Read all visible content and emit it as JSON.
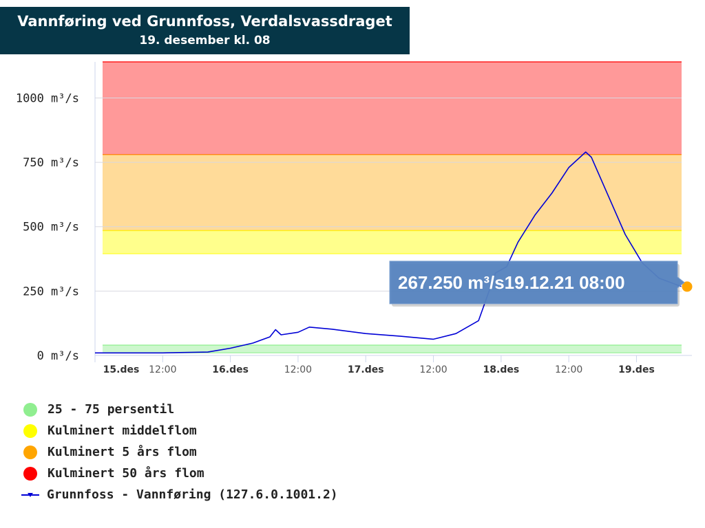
{
  "header": {
    "title": "Vannføring ved Grunnfoss, Verdalsvassdraget",
    "subtitle": "19. desember kl. 08"
  },
  "chart_data": {
    "type": "line",
    "y_unit": "m³/s",
    "ylim": [
      0,
      1140
    ],
    "y_ticks": [
      0,
      250,
      500,
      750,
      1000
    ],
    "y_tick_labels": [
      "0 m³/s",
      "250 m³/s",
      "500 m³/s",
      "750 m³/s",
      "1000 m³/s"
    ],
    "xlim": [
      "2021-12-15T00:00",
      "2021-12-19T08:00"
    ],
    "x_ticks": [
      "2021-12-15T00:00",
      "2021-12-15T12:00",
      "2021-12-16T00:00",
      "2021-12-16T12:00",
      "2021-12-17T00:00",
      "2021-12-17T12:00",
      "2021-12-18T00:00",
      "2021-12-18T12:00",
      "2021-12-19T00:00"
    ],
    "x_tick_labels": [
      "15.des",
      "12:00",
      "16.des",
      "12:00",
      "17.des",
      "12:00",
      "18.des",
      "12:00",
      "19.des"
    ],
    "grid": true,
    "bands": [
      {
        "name": "25 - 75 persentil",
        "from": 10,
        "to": 40,
        "color": "#90ee90"
      },
      {
        "name": "Kulminert middelflom",
        "from": 395,
        "to": 485,
        "color": "#ffff00"
      },
      {
        "name": "Kulminert 5 års flom",
        "from": 485,
        "to": 780,
        "color": "#ffa500"
      },
      {
        "name": "Kulminert 50 års flom",
        "from": 780,
        "to": 1140,
        "color": "#ff0000"
      }
    ],
    "series": [
      {
        "name": "Grunnfoss - Vannføring (127.6.0.1001.2)",
        "color": "#0000d6",
        "points": [
          [
            "2021-12-15T00:00",
            10
          ],
          [
            "2021-12-15T12:00",
            10
          ],
          [
            "2021-12-15T20:00",
            13
          ],
          [
            "2021-12-16T00:00",
            28
          ],
          [
            "2021-12-16T04:00",
            48
          ],
          [
            "2021-12-16T07:00",
            72
          ],
          [
            "2021-12-16T08:00",
            100
          ],
          [
            "2021-12-16T09:00",
            80
          ],
          [
            "2021-12-16T12:00",
            90
          ],
          [
            "2021-12-16T14:00",
            110
          ],
          [
            "2021-12-16T18:00",
            102
          ],
          [
            "2021-12-17T00:00",
            85
          ],
          [
            "2021-12-17T06:00",
            75
          ],
          [
            "2021-12-17T12:00",
            63
          ],
          [
            "2021-12-17T16:00",
            85
          ],
          [
            "2021-12-17T20:00",
            135
          ],
          [
            "2021-12-17T23:00",
            320
          ],
          [
            "2021-12-18T01:00",
            345
          ],
          [
            "2021-12-18T03:00",
            440
          ],
          [
            "2021-12-18T06:00",
            545
          ],
          [
            "2021-12-18T09:00",
            630
          ],
          [
            "2021-12-18T12:00",
            730
          ],
          [
            "2021-12-18T15:00",
            790
          ],
          [
            "2021-12-18T16:00",
            770
          ],
          [
            "2021-12-18T19:00",
            620
          ],
          [
            "2021-12-18T22:00",
            470
          ],
          [
            "2021-12-19T01:00",
            360
          ],
          [
            "2021-12-19T04:00",
            300
          ],
          [
            "2021-12-19T08:00",
            267.25
          ]
        ]
      }
    ],
    "tooltip": {
      "value": "267.250 m³/s",
      "time": "19.12.21 08:00"
    }
  },
  "legend": {
    "items": [
      {
        "label": "25 - 75 persentil",
        "color": "#90ee90"
      },
      {
        "label": "Kulminert middelflom",
        "color": "#ffff00"
      },
      {
        "label": "Kulminert 5 års flom",
        "color": "#ffa500"
      },
      {
        "label": "Kulminert 50 års flom",
        "color": "#ff0000"
      }
    ],
    "series_label": "Grunnfoss - Vannføring (127.6.0.1001.2)"
  }
}
